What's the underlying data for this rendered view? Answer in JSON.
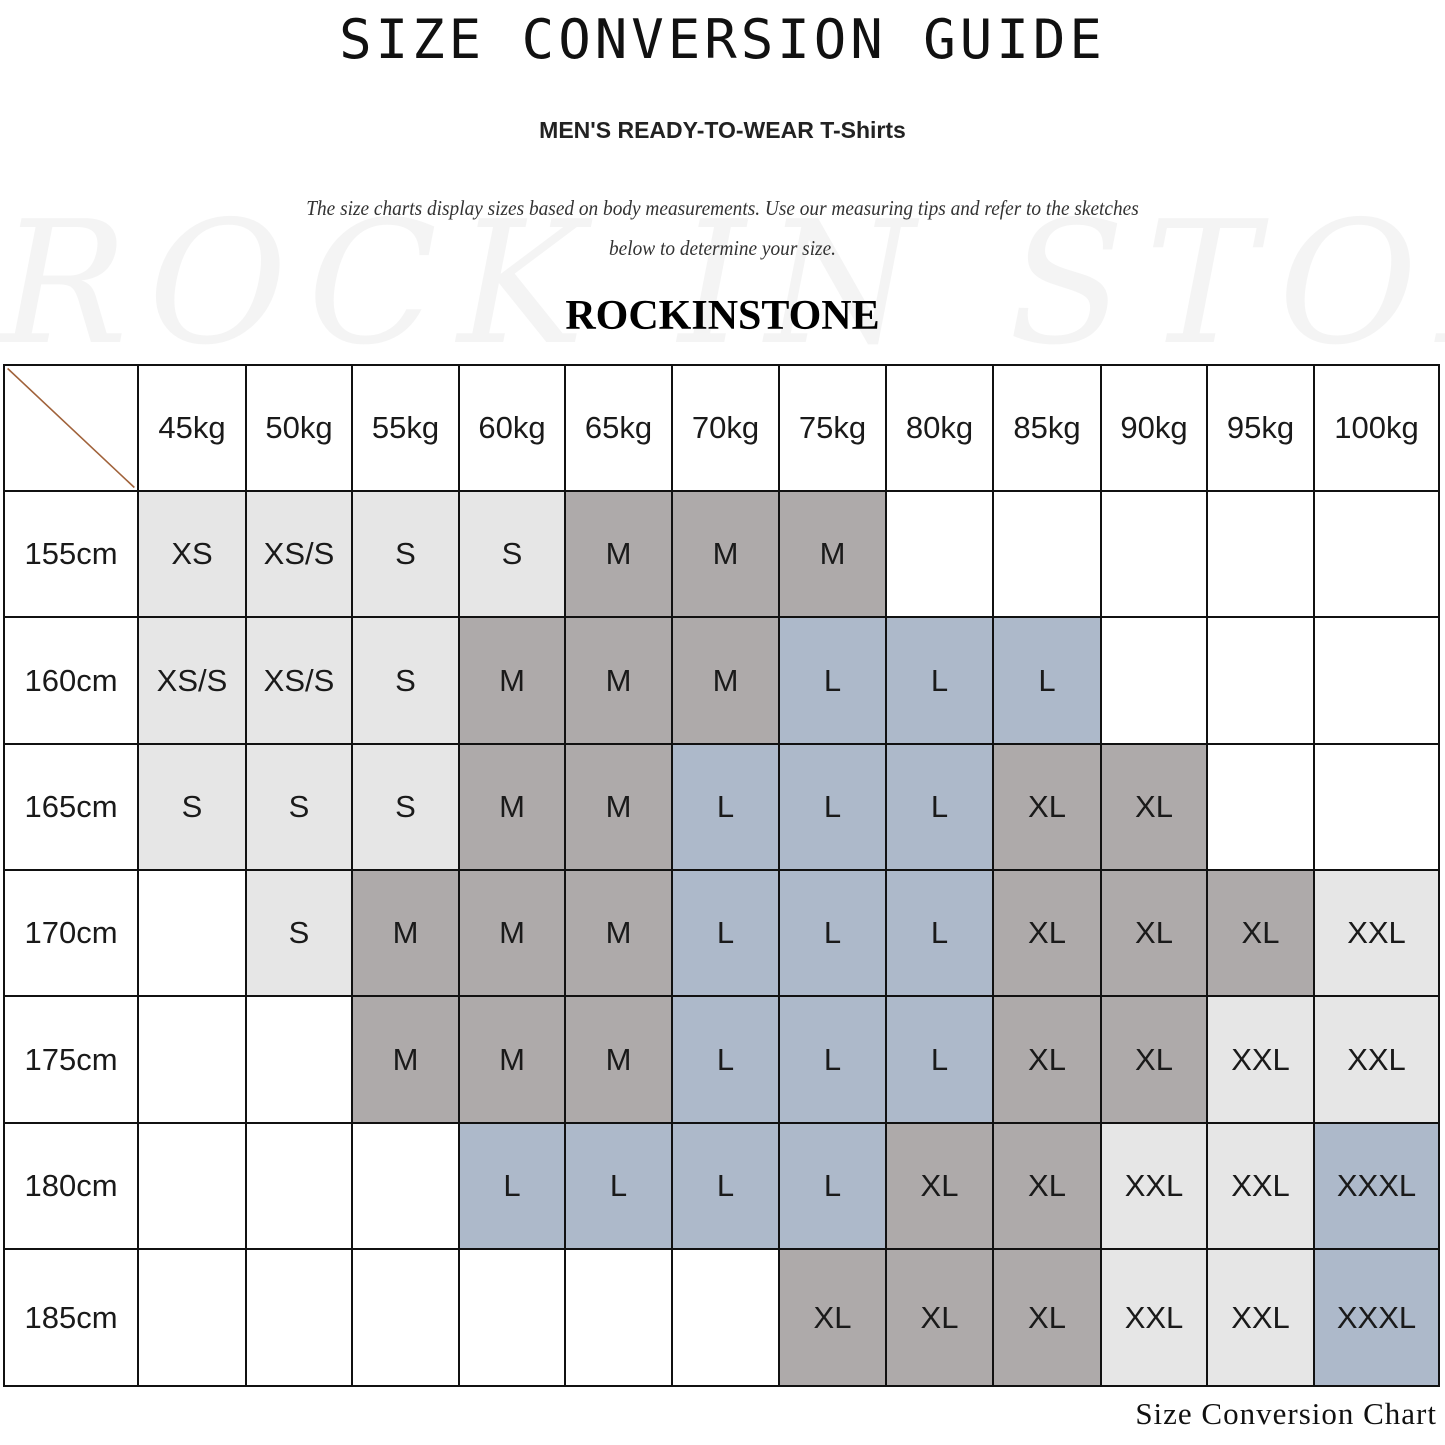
{
  "title": "SIZE CONVERSION GUIDE",
  "subtitle": "MEN'S READY-TO-WEAR T-Shirts",
  "description_line1": "The size charts display sizes based on body measurements. Use our measuring tips and refer to the sketches",
  "description_line2": "below to determine your size.",
  "watermark": "ROCK IN STONE",
  "brand": "ROCKINSTONE",
  "footer": "Size Conversion Chart",
  "colors": {
    "XS": "#e6e6e6",
    "XS/S": "#e6e6e6",
    "S": "#e6e6e6",
    "XXL": "#e6e6e6",
    "M": "#aeaaaa",
    "XL": "#aeaaaa",
    "L": "#adb9ca",
    "XXXL": "#adb9ca",
    "diagonal": "#a0623a"
  },
  "table": {
    "weights": [
      "45kg",
      "50kg",
      "55kg",
      "60kg",
      "65kg",
      "70kg",
      "75kg",
      "80kg",
      "85kg",
      "90kg",
      "95kg",
      "100kg"
    ],
    "rows": [
      {
        "height": "155cm",
        "sizes": [
          "XS",
          "XS/S",
          "S",
          "S",
          "M",
          "M",
          "M",
          "",
          "",
          "",
          "",
          ""
        ]
      },
      {
        "height": "160cm",
        "sizes": [
          "XS/S",
          "XS/S",
          "S",
          "M",
          "M",
          "M",
          "L",
          "L",
          "L",
          "",
          "",
          ""
        ]
      },
      {
        "height": "165cm",
        "sizes": [
          "S",
          "S",
          "S",
          "M",
          "M",
          "L",
          "L",
          "L",
          "XL",
          "XL",
          "",
          ""
        ]
      },
      {
        "height": "170cm",
        "sizes": [
          "",
          "S",
          "M",
          "M",
          "M",
          "L",
          "L",
          "L",
          "XL",
          "XL",
          "XL",
          "XXL"
        ]
      },
      {
        "height": "175cm",
        "sizes": [
          "",
          "",
          "M",
          "M",
          "M",
          "L",
          "L",
          "L",
          "XL",
          "XL",
          "XXL",
          "XXL"
        ]
      },
      {
        "height": "180cm",
        "sizes": [
          "",
          "",
          "",
          "L",
          "L",
          "L",
          "L",
          "XL",
          "XL",
          "XXL",
          "XXL",
          "XXXL"
        ]
      },
      {
        "height": "185cm",
        "sizes": [
          "",
          "",
          "",
          "",
          "",
          "",
          "XL",
          "XL",
          "XL",
          "XXL",
          "XXL",
          "XXXL"
        ]
      }
    ]
  }
}
